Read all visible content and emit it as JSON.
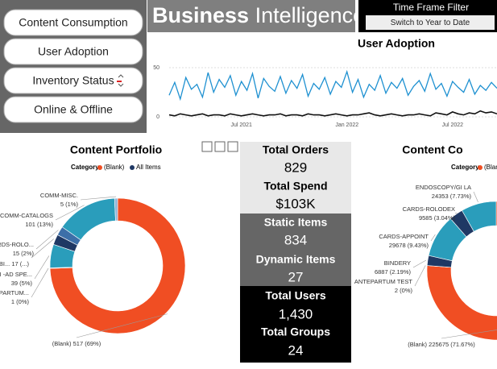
{
  "nav": {
    "buttons": [
      "Content Consumption",
      "User Adoption",
      "Inventory Status",
      "Online & Offline"
    ]
  },
  "header": {
    "title_bold": "Business",
    "title_light": "Intelligence"
  },
  "filter": {
    "title": "Time Frame Filter",
    "button": "Switch to Year to Date"
  },
  "cards": [
    {
      "label": "Total Orders",
      "value": "829"
    },
    {
      "label": "Total Spend",
      "value": "$103K"
    },
    {
      "label": "Static Items",
      "value": "834"
    },
    {
      "label": "Dynamic Items",
      "value": "27"
    },
    {
      "label": "Total Users",
      "value": "1,430"
    },
    {
      "label": "Total Groups",
      "value": "24"
    }
  ],
  "chart_data": [
    {
      "type": "line",
      "title": "User Adoption",
      "categories": [
        null,
        null,
        null,
        null,
        null,
        null,
        null,
        null,
        null,
        null,
        null,
        null,
        null,
        "Jul 2021",
        null,
        null,
        null,
        null,
        null,
        null,
        null,
        null,
        null,
        null,
        null,
        null,
        null,
        null,
        null,
        null,
        null,
        null,
        "Jan 2022",
        null,
        null,
        null,
        null,
        null,
        null,
        null,
        null,
        null,
        null,
        null,
        null,
        null,
        null,
        null,
        null,
        null,
        null,
        "Jul 2022",
        null,
        null,
        null,
        null,
        null,
        null,
        null,
        null
      ],
      "series": [
        {
          "color": "#1f91d1",
          "values": [
            22,
            35,
            18,
            40,
            28,
            33,
            20,
            45,
            25,
            38,
            30,
            42,
            22,
            36,
            27,
            44,
            19,
            39,
            31,
            26,
            41,
            24,
            37,
            29,
            43,
            21,
            34,
            28,
            40,
            23,
            36,
            30,
            46,
            25,
            38,
            20,
            33,
            27,
            42,
            24,
            35,
            29,
            39,
            22,
            31,
            37,
            26,
            44,
            28,
            34,
            21,
            36,
            30,
            25,
            38,
            23,
            32,
            27,
            35,
            29
          ]
        },
        {
          "color": "#111111",
          "values": [
            2,
            1,
            3,
            2,
            1,
            2,
            3,
            1,
            2,
            2,
            1,
            3,
            2,
            1,
            2,
            3,
            2,
            1,
            2,
            2,
            3,
            1,
            2,
            2,
            1,
            3,
            2,
            2,
            1,
            2,
            3,
            2,
            1,
            2,
            2,
            3,
            4,
            2,
            1,
            2,
            3,
            2,
            1,
            2,
            2,
            3,
            2,
            1,
            4,
            3,
            2,
            5,
            3,
            2,
            4,
            3,
            6,
            4,
            5,
            3
          ]
        }
      ],
      "ylim": [
        0,
        50
      ],
      "yticks": [
        0,
        50
      ]
    },
    {
      "type": "donut",
      "title": "Content Portfolio",
      "legend": {
        "title": "Category",
        "items": [
          {
            "name": "(Blank)",
            "color": "#f04e23"
          },
          {
            "name": "All Items",
            "color": "#1f3864"
          }
        ]
      },
      "categories": [
        "(Blank)",
        "NTEPARTUM...",
        "LSI -AD SPE...",
        "BI...",
        "ARDS-ROLO...",
        "COMM-CATALOGS",
        "COMM-MISC."
      ],
      "values": [
        517,
        1,
        39,
        17,
        15,
        101,
        5
      ],
      "value_labels": [
        "517 (69%)",
        "1 (0%)",
        "39 (5%)",
        "17 (...)",
        "15 (2%)",
        "101 (13%)",
        "5 (1%)"
      ],
      "colors": [
        "#f04e23",
        "#1f3864",
        "#2a9dbb",
        "#1f3864",
        "#3d6fa8",
        "#2a9dbb",
        "#8fb4d9"
      ]
    },
    {
      "type": "donut",
      "title": "Content Co",
      "legend": {
        "title": "Category",
        "items": [
          {
            "name": "(Blank)",
            "color": "#f04e23"
          }
        ]
      },
      "categories": [
        "(Blank)",
        "ANTEPARTUM TEST",
        "BINDERY",
        "CARDS-APPOINT",
        "CARDS-ROLODEX",
        "ENDOSCOPY/GI LA"
      ],
      "values": [
        225675,
        2,
        6887,
        29678,
        9585,
        24353
      ],
      "value_labels": [
        "225675 (71.67%)",
        "2 (0%)",
        "6887 (2.19%)",
        "29678 (9.43%)",
        "9585 (3.04%)",
        "24353 (7.73%)"
      ],
      "colors": [
        "#f04e23",
        "#1f3864",
        "#1f3864",
        "#2a9dbb",
        "#1f3864",
        "#2a9dbb"
      ]
    }
  ]
}
